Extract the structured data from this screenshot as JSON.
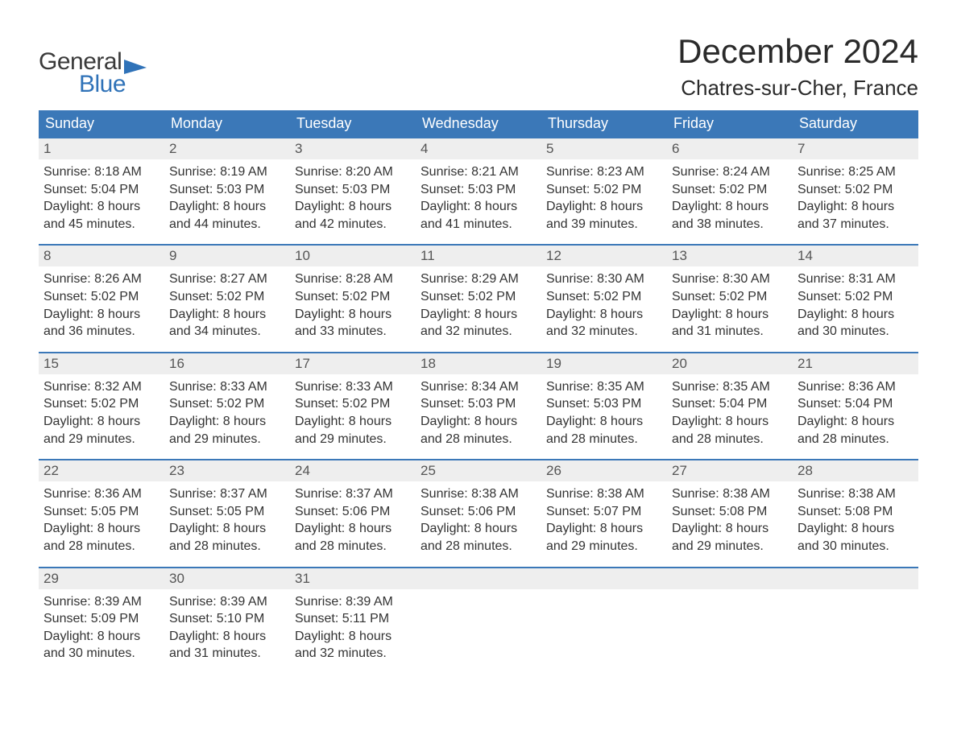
{
  "brand": {
    "text1": "General",
    "text2": "Blue",
    "color_dark": "#3a3a3a",
    "color_blue": "#2f72b8"
  },
  "title": "December 2024",
  "location": "Chatres-sur-Cher, France",
  "colors": {
    "header_bg": "#3b78b8",
    "header_text": "#ffffff",
    "daynum_bg": "#eeeeee",
    "week_rule": "#3b78b8",
    "body_text": "#333333",
    "background": "#ffffff"
  },
  "typography": {
    "title_fontsize": 42,
    "location_fontsize": 26,
    "dayheader_fontsize": 18,
    "daynum_fontsize": 17,
    "cell_fontsize": 16
  },
  "day_names": [
    "Sunday",
    "Monday",
    "Tuesday",
    "Wednesday",
    "Thursday",
    "Friday",
    "Saturday"
  ],
  "labels": {
    "sunrise": "Sunrise:",
    "sunset": "Sunset:",
    "daylight": "Daylight:"
  },
  "weeks": [
    [
      {
        "n": "1",
        "sunrise": "8:18 AM",
        "sunset": "5:04 PM",
        "daylight1": "8 hours",
        "daylight2": "and 45 minutes."
      },
      {
        "n": "2",
        "sunrise": "8:19 AM",
        "sunset": "5:03 PM",
        "daylight1": "8 hours",
        "daylight2": "and 44 minutes."
      },
      {
        "n": "3",
        "sunrise": "8:20 AM",
        "sunset": "5:03 PM",
        "daylight1": "8 hours",
        "daylight2": "and 42 minutes."
      },
      {
        "n": "4",
        "sunrise": "8:21 AM",
        "sunset": "5:03 PM",
        "daylight1": "8 hours",
        "daylight2": "and 41 minutes."
      },
      {
        "n": "5",
        "sunrise": "8:23 AM",
        "sunset": "5:02 PM",
        "daylight1": "8 hours",
        "daylight2": "and 39 minutes."
      },
      {
        "n": "6",
        "sunrise": "8:24 AM",
        "sunset": "5:02 PM",
        "daylight1": "8 hours",
        "daylight2": "and 38 minutes."
      },
      {
        "n": "7",
        "sunrise": "8:25 AM",
        "sunset": "5:02 PM",
        "daylight1": "8 hours",
        "daylight2": "and 37 minutes."
      }
    ],
    [
      {
        "n": "8",
        "sunrise": "8:26 AM",
        "sunset": "5:02 PM",
        "daylight1": "8 hours",
        "daylight2": "and 36 minutes."
      },
      {
        "n": "9",
        "sunrise": "8:27 AM",
        "sunset": "5:02 PM",
        "daylight1": "8 hours",
        "daylight2": "and 34 minutes."
      },
      {
        "n": "10",
        "sunrise": "8:28 AM",
        "sunset": "5:02 PM",
        "daylight1": "8 hours",
        "daylight2": "and 33 minutes."
      },
      {
        "n": "11",
        "sunrise": "8:29 AM",
        "sunset": "5:02 PM",
        "daylight1": "8 hours",
        "daylight2": "and 32 minutes."
      },
      {
        "n": "12",
        "sunrise": "8:30 AM",
        "sunset": "5:02 PM",
        "daylight1": "8 hours",
        "daylight2": "and 32 minutes."
      },
      {
        "n": "13",
        "sunrise": "8:30 AM",
        "sunset": "5:02 PM",
        "daylight1": "8 hours",
        "daylight2": "and 31 minutes."
      },
      {
        "n": "14",
        "sunrise": "8:31 AM",
        "sunset": "5:02 PM",
        "daylight1": "8 hours",
        "daylight2": "and 30 minutes."
      }
    ],
    [
      {
        "n": "15",
        "sunrise": "8:32 AM",
        "sunset": "5:02 PM",
        "daylight1": "8 hours",
        "daylight2": "and 29 minutes."
      },
      {
        "n": "16",
        "sunrise": "8:33 AM",
        "sunset": "5:02 PM",
        "daylight1": "8 hours",
        "daylight2": "and 29 minutes."
      },
      {
        "n": "17",
        "sunrise": "8:33 AM",
        "sunset": "5:02 PM",
        "daylight1": "8 hours",
        "daylight2": "and 29 minutes."
      },
      {
        "n": "18",
        "sunrise": "8:34 AM",
        "sunset": "5:03 PM",
        "daylight1": "8 hours",
        "daylight2": "and 28 minutes."
      },
      {
        "n": "19",
        "sunrise": "8:35 AM",
        "sunset": "5:03 PM",
        "daylight1": "8 hours",
        "daylight2": "and 28 minutes."
      },
      {
        "n": "20",
        "sunrise": "8:35 AM",
        "sunset": "5:04 PM",
        "daylight1": "8 hours",
        "daylight2": "and 28 minutes."
      },
      {
        "n": "21",
        "sunrise": "8:36 AM",
        "sunset": "5:04 PM",
        "daylight1": "8 hours",
        "daylight2": "and 28 minutes."
      }
    ],
    [
      {
        "n": "22",
        "sunrise": "8:36 AM",
        "sunset": "5:05 PM",
        "daylight1": "8 hours",
        "daylight2": "and 28 minutes."
      },
      {
        "n": "23",
        "sunrise": "8:37 AM",
        "sunset": "5:05 PM",
        "daylight1": "8 hours",
        "daylight2": "and 28 minutes."
      },
      {
        "n": "24",
        "sunrise": "8:37 AM",
        "sunset": "5:06 PM",
        "daylight1": "8 hours",
        "daylight2": "and 28 minutes."
      },
      {
        "n": "25",
        "sunrise": "8:38 AM",
        "sunset": "5:06 PM",
        "daylight1": "8 hours",
        "daylight2": "and 28 minutes."
      },
      {
        "n": "26",
        "sunrise": "8:38 AM",
        "sunset": "5:07 PM",
        "daylight1": "8 hours",
        "daylight2": "and 29 minutes."
      },
      {
        "n": "27",
        "sunrise": "8:38 AM",
        "sunset": "5:08 PM",
        "daylight1": "8 hours",
        "daylight2": "and 29 minutes."
      },
      {
        "n": "28",
        "sunrise": "8:38 AM",
        "sunset": "5:08 PM",
        "daylight1": "8 hours",
        "daylight2": "and 30 minutes."
      }
    ],
    [
      {
        "n": "29",
        "sunrise": "8:39 AM",
        "sunset": "5:09 PM",
        "daylight1": "8 hours",
        "daylight2": "and 30 minutes."
      },
      {
        "n": "30",
        "sunrise": "8:39 AM",
        "sunset": "5:10 PM",
        "daylight1": "8 hours",
        "daylight2": "and 31 minutes."
      },
      {
        "n": "31",
        "sunrise": "8:39 AM",
        "sunset": "5:11 PM",
        "daylight1": "8 hours",
        "daylight2": "and 32 minutes."
      },
      null,
      null,
      null,
      null
    ]
  ]
}
